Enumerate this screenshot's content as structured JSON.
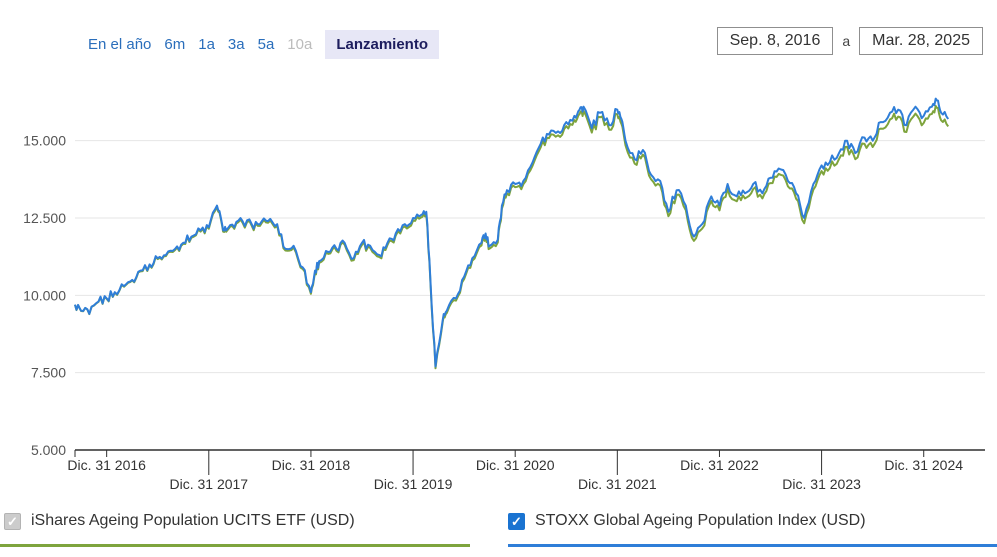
{
  "time_range": {
    "options": [
      {
        "label": "En el año",
        "state": "link"
      },
      {
        "label": "6m",
        "state": "link"
      },
      {
        "label": "1a",
        "state": "link"
      },
      {
        "label": "3a",
        "state": "link"
      },
      {
        "label": "5a",
        "state": "link"
      },
      {
        "label": "10a",
        "state": "disabled"
      },
      {
        "label": "Lanzamiento",
        "state": "selected"
      }
    ]
  },
  "date_range": {
    "start": "Sep. 8, 2016",
    "separator": "a",
    "end": "Mar. 28, 2025"
  },
  "legend": [
    {
      "label": "iShares Ageing Population UCITS ETF (USD)",
      "checked": true,
      "checkbox_style": "gray",
      "color": "#7ea43d"
    },
    {
      "label": "STOXX Global Ageing Population Index (USD)",
      "checked": true,
      "checkbox_style": "blue",
      "color": "#2f7ed8"
    }
  ],
  "chart_data": {
    "type": "line",
    "title": "",
    "xlabel": "",
    "ylabel": "",
    "grid": true,
    "legend_position": "bottom",
    "xlim": [
      2016.69,
      2025.6
    ],
    "ylim": [
      5000,
      16800
    ],
    "y_ticks": [
      5000,
      7500,
      10000,
      12500,
      15000
    ],
    "y_tick_labels": [
      "5.000",
      "7.500",
      "10.000",
      "12.500",
      "15.000"
    ],
    "x_tick_positions": [
      2017,
      2018,
      2019,
      2020,
      2021,
      2022,
      2023,
      2024,
      2025
    ],
    "x_tick_labels": [
      "Dic. 31 2016",
      "Dic. 31 2017",
      "Dic. 31 2018",
      "Dic. 31 2019",
      "Dic. 31 2020",
      "Dic. 31 2021",
      "Dic. 31 2022",
      "Dic. 31 2023",
      "Dic. 31 2024"
    ],
    "x_years": [
      2016.69,
      2016.75,
      2016.83,
      2016.92,
      2017.0,
      2017.08,
      2017.17,
      2017.25,
      2017.33,
      2017.42,
      2017.5,
      2017.58,
      2017.67,
      2017.75,
      2017.83,
      2017.92,
      2018.0,
      2018.08,
      2018.13,
      2018.17,
      2018.25,
      2018.33,
      2018.42,
      2018.5,
      2018.58,
      2018.67,
      2018.75,
      2018.83,
      2018.92,
      2019.0,
      2019.04,
      2019.08,
      2019.17,
      2019.25,
      2019.33,
      2019.42,
      2019.5,
      2019.58,
      2019.67,
      2019.75,
      2019.83,
      2019.92,
      2020.0,
      2020.08,
      2020.13,
      2020.17,
      2020.22,
      2020.29,
      2020.33,
      2020.42,
      2020.5,
      2020.58,
      2020.67,
      2020.71,
      2020.75,
      2020.83,
      2020.87,
      2020.92,
      2021.0,
      2021.08,
      2021.17,
      2021.25,
      2021.33,
      2021.42,
      2021.5,
      2021.58,
      2021.63,
      2021.67,
      2021.75,
      2021.83,
      2021.92,
      2022.0,
      2022.04,
      2022.08,
      2022.17,
      2022.25,
      2022.33,
      2022.42,
      2022.5,
      2022.58,
      2022.67,
      2022.75,
      2022.83,
      2022.92,
      2023.0,
      2023.08,
      2023.17,
      2023.25,
      2023.33,
      2023.42,
      2023.5,
      2023.58,
      2023.67,
      2023.75,
      2023.83,
      2023.92,
      2024.0,
      2024.08,
      2024.17,
      2024.25,
      2024.33,
      2024.42,
      2024.5,
      2024.58,
      2024.67,
      2024.75,
      2024.83,
      2024.92,
      2025.0,
      2025.08,
      2025.13,
      2025.17,
      2025.24
    ],
    "series": [
      {
        "name": "iShares Ageing Population UCITS ETF (USD)",
        "color": "#7ea43d",
        "values": [
          9690,
          9495,
          9395,
          9790,
          9885,
          10085,
          10280,
          10480,
          10775,
          10975,
          11170,
          11270,
          11465,
          11665,
          11865,
          12060,
          12155,
          12850,
          12255,
          12055,
          12150,
          12350,
          12250,
          12245,
          12345,
          12245,
          11450,
          11545,
          10850,
          10050,
          10745,
          11045,
          11340,
          11440,
          11640,
          11140,
          11635,
          11535,
          11235,
          11630,
          11930,
          12225,
          12420,
          12520,
          12615,
          10430,
          7640,
          9135,
          9430,
          9830,
          10525,
          11120,
          11615,
          11915,
          11515,
          11710,
          12805,
          13300,
          13495,
          13595,
          14190,
          14785,
          15080,
          15175,
          15470,
          15665,
          15860,
          15955,
          15260,
          15755,
          15355,
          15845,
          15545,
          14850,
          14255,
          14550,
          13755,
          13555,
          12560,
          13250,
          12755,
          11760,
          12155,
          13050,
          12745,
          13440,
          13040,
          13135,
          13435,
          13135,
          13630,
          13925,
          13525,
          13125,
          12330,
          13420,
          14015,
          14110,
          14405,
          14800,
          14400,
          14895,
          14795,
          15390,
          15685,
          15780,
          15280,
          15875,
          15570,
          15865,
          16060,
          15660,
          15460
        ]
      },
      {
        "name": "STOXX Global Ageing Population Index (USD)",
        "color": "#2f7ed8",
        "values": [
          9700,
          9500,
          9400,
          9800,
          9900,
          10100,
          10300,
          10500,
          10800,
          11000,
          11200,
          11300,
          11500,
          11700,
          11900,
          12100,
          12200,
          12900,
          12300,
          12100,
          12200,
          12400,
          12300,
          12300,
          12400,
          12300,
          11500,
          11600,
          10900,
          10100,
          10800,
          11100,
          11400,
          11500,
          11700,
          11200,
          11700,
          11600,
          11300,
          11700,
          12000,
          12300,
          12500,
          12600,
          12700,
          10500,
          7700,
          9200,
          9500,
          9900,
          10600,
          11200,
          11700,
          12000,
          11600,
          11800,
          12900,
          13400,
          13600,
          13700,
          14300,
          14900,
          15200,
          15300,
          15600,
          15800,
          16000,
          16100,
          15400,
          15900,
          15500,
          16000,
          15700,
          15000,
          14400,
          14700,
          13900,
          13700,
          12700,
          13400,
          12900,
          11900,
          12300,
          13200,
          12900,
          13600,
          13200,
          13300,
          13600,
          13300,
          13800,
          14100,
          13700,
          13300,
          12500,
          13600,
          14200,
          14300,
          14600,
          15000,
          14600,
          15100,
          15000,
          15600,
          15900,
          16000,
          15500,
          16100,
          15800,
          16100,
          16300,
          15900,
          15700
        ]
      }
    ]
  }
}
